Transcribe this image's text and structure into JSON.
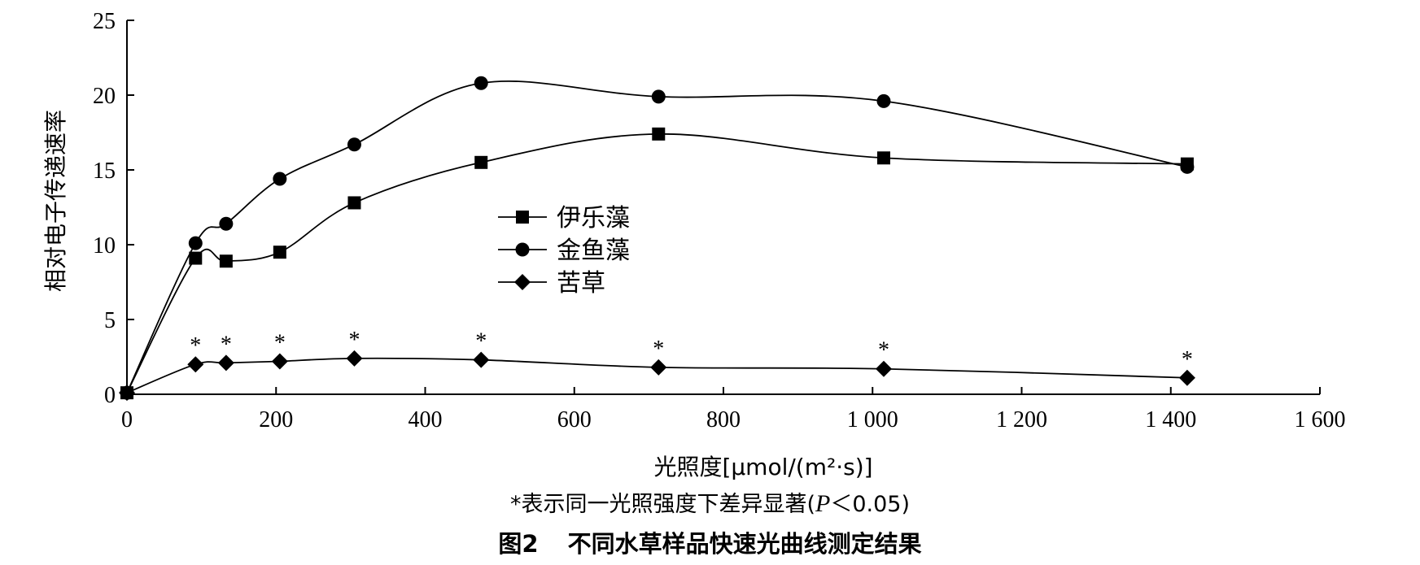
{
  "chart_data": {
    "type": "line",
    "xlabel": "光照度[μmol/(m²·s)]",
    "ylabel": "相对电子传递速率",
    "xlim": [
      0,
      1600
    ],
    "ylim": [
      0,
      25
    ],
    "x_ticks": [
      "0",
      "200",
      "400",
      "600",
      "800",
      "1 000",
      "1 200",
      "1 400",
      "1 600"
    ],
    "y_ticks": [
      "0",
      "5",
      "10",
      "15",
      "20",
      "25"
    ],
    "legend_position": "center",
    "series": [
      {
        "name": "伊乐藻",
        "marker": "square",
        "x": [
          0,
          92,
          133,
          205,
          305,
          475,
          713,
          1015,
          1422
        ],
        "y": [
          0.1,
          9.1,
          8.9,
          9.5,
          12.8,
          15.5,
          17.4,
          15.8,
          15.4
        ]
      },
      {
        "name": "金鱼藻",
        "marker": "circle",
        "x": [
          0,
          92,
          133,
          205,
          305,
          475,
          713,
          1015,
          1422
        ],
        "y": [
          0.1,
          10.1,
          11.4,
          14.4,
          16.7,
          20.8,
          19.9,
          19.6,
          15.2
        ]
      },
      {
        "name": "苦草",
        "marker": "diamond",
        "x": [
          0,
          92,
          133,
          205,
          305,
          475,
          713,
          1015,
          1422
        ],
        "y": [
          0.1,
          2.0,
          2.1,
          2.2,
          2.4,
          2.3,
          1.8,
          1.7,
          1.1
        ]
      }
    ],
    "significance_marker": "*",
    "significant_x": [
      92,
      133,
      205,
      305,
      475,
      713,
      1015,
      1422
    ]
  },
  "note": {
    "prefix": "*表示同一光照强度下差异显著(",
    "p_symbol": "P",
    "suffix": "＜0.05)"
  },
  "caption": {
    "figure_number": "图2",
    "title": "不同水草样品快速光曲线测定结果"
  }
}
